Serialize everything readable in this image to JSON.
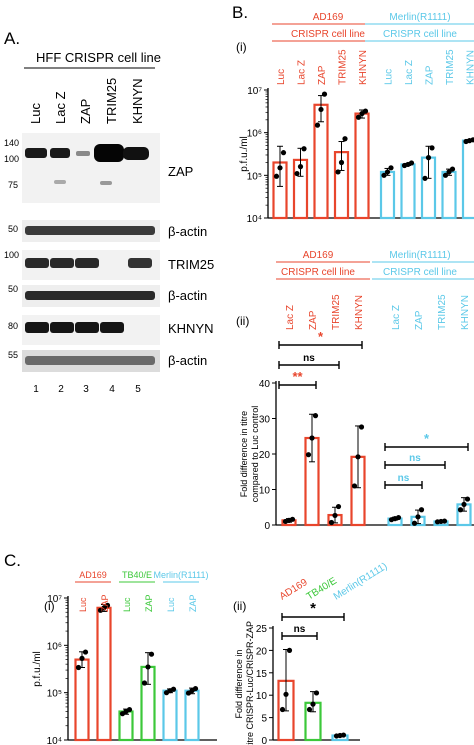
{
  "colors": {
    "ad169": "#e8452c",
    "tb40e": "#3cc83a",
    "merlin": "#5bc8e8",
    "black": "#000000"
  },
  "panel_a": {
    "letter": "A.",
    "header": "HFF CRISPR cell line",
    "lanes": [
      "Luc",
      "Lac Z",
      "ZAP",
      "TRIM25",
      "KHNYN"
    ],
    "lane_numbers": [
      "1",
      "2",
      "3",
      "4",
      "5"
    ],
    "blots": [
      {
        "label": "ZAP",
        "markers": [
          "140",
          "100",
          "75"
        ]
      },
      {
        "label": "β-actin",
        "markers": [
          "50"
        ]
      },
      {
        "label": "TRIM25",
        "markers": [
          "100"
        ]
      },
      {
        "label": "β-actin",
        "markers": [
          "50"
        ]
      },
      {
        "label": "KHNYN",
        "markers": [
          "80"
        ]
      },
      {
        "label": "β-actin",
        "markers": [
          "55"
        ]
      }
    ]
  },
  "panel_b": {
    "letter": "B.",
    "strain1": "AD169",
    "strain2": "Merlin(R1111)",
    "subheader": "CRISPR cell line"
  },
  "panel_c": {
    "letter": "C."
  },
  "chart_data": [
    {
      "id": "B(i)",
      "panel_label": "(i)",
      "type": "bar",
      "ylabel": "p.f.u./ml",
      "yscale": "log",
      "ylim": [
        10000,
        10000000
      ],
      "yticks": [
        "10⁴",
        "10⁵",
        "10⁶",
        "10⁷"
      ],
      "categories": [
        "Luc",
        "Lac Z",
        "ZAP",
        "TRIM25",
        "KHNYN",
        "Luc",
        "Lac Z",
        "ZAP",
        "TRIM25",
        "KHNYN"
      ],
      "values": [
        200000,
        230000,
        4500000,
        350000,
        2800000,
        120000,
        180000,
        260000,
        120000,
        650000
      ],
      "errors": [
        [
          55000,
          480000
        ],
        [
          95000,
          430000
        ],
        [
          1800000,
          7400000
        ],
        [
          130000,
          620000
        ],
        [
          2200000,
          3400000
        ],
        [
          100000,
          145000
        ],
        [
          170000,
          190000
        ],
        [
          85000,
          480000
        ],
        [
          100000,
          140000
        ],
        [
          620000,
          690000
        ]
      ],
      "points": [
        [
          95000,
          150000,
          340000
        ],
        [
          110000,
          160000,
          420000
        ],
        [
          1500000,
          3500000,
          8000000
        ],
        [
          120000,
          200000,
          720000
        ],
        [
          2300000,
          2800000,
          3200000
        ],
        [
          100000,
          120000,
          150000
        ],
        [
          170000,
          180000,
          195000
        ],
        [
          85000,
          260000,
          440000
        ],
        [
          100000,
          120000,
          140000
        ],
        [
          620000,
          650000,
          680000
        ]
      ],
      "strains": [
        "AD169",
        "AD169",
        "AD169",
        "AD169",
        "AD169",
        "Merlin(R1111)",
        "Merlin(R1111)",
        "Merlin(R1111)",
        "Merlin(R1111)",
        "Merlin(R1111)"
      ]
    },
    {
      "id": "B(ii)",
      "panel_label": "(ii)",
      "type": "bar",
      "ylabel": "Fold difference in titre compared to Luc control",
      "ylim": [
        0,
        40
      ],
      "yticks": [
        "0",
        "10",
        "20",
        "30",
        "40"
      ],
      "categories": [
        "Lac Z",
        "ZAP",
        "TRIM25",
        "KHNYN",
        "Lac Z",
        "ZAP",
        "TRIM25",
        "KHNYN"
      ],
      "values": [
        1.3,
        24.5,
        2.8,
        19.2,
        1.8,
        2.3,
        1.0,
        5.8
      ],
      "errors": [
        [
          0.8,
          1.8
        ],
        [
          17.8,
          31.2
        ],
        [
          0.6,
          5.0
        ],
        [
          10.5,
          27.9
        ],
        [
          1.4,
          2.2
        ],
        [
          0.4,
          4.2
        ],
        [
          0.8,
          1.2
        ],
        [
          3.9,
          7.7
        ]
      ],
      "points": [
        [
          1.0,
          1.3,
          1.6
        ],
        [
          19.8,
          24.5,
          30.8
        ],
        [
          0.7,
          2.7,
          5.2
        ],
        [
          11.0,
          19.2,
          27.6
        ],
        [
          1.5,
          1.8,
          2.1
        ],
        [
          0.5,
          2.3,
          4.3
        ],
        [
          0.9,
          1.0,
          1.1
        ],
        [
          4.3,
          5.8,
          7.3
        ]
      ],
      "strains": [
        "AD169",
        "AD169",
        "AD169",
        "AD169",
        "Merlin(R1111)",
        "Merlin(R1111)",
        "Merlin(R1111)",
        "Merlin(R1111)"
      ],
      "annotations": [
        "*",
        "ns",
        "**",
        "*",
        "ns",
        "ns"
      ]
    },
    {
      "id": "C(i)",
      "panel_label": "(i)",
      "type": "bar",
      "ylabel": "p.f.u./ml",
      "yscale": "log",
      "ylim": [
        10000,
        10000000
      ],
      "yticks": [
        "10⁴",
        "10⁵",
        "10⁶",
        "10⁷"
      ],
      "group_labels": [
        "AD169",
        "TB40/E",
        "Merlin(R1111)"
      ],
      "categories": [
        "Luc",
        "ZAP",
        "Luc",
        "ZAP",
        "Luc",
        "ZAP"
      ],
      "values": [
        500000,
        6200000,
        40000,
        350000,
        110000,
        110000
      ],
      "errors": [
        [
          340000,
          730000
        ],
        [
          5200000,
          7300000
        ],
        [
          35000,
          45000
        ],
        [
          150000,
          700000
        ],
        [
          100000,
          120000
        ],
        [
          95000,
          125000
        ]
      ],
      "points": [
        [
          340000,
          530000,
          720000
        ],
        [
          5500000,
          6200000,
          7000000
        ],
        [
          36000,
          40000,
          44000
        ],
        [
          160000,
          350000,
          650000
        ],
        [
          100000,
          110000,
          118000
        ],
        [
          98000,
          110000,
          122000
        ]
      ],
      "strains": [
        "AD169",
        "AD169",
        "TB40/E",
        "TB40/E",
        "Merlin(R1111)",
        "Merlin(R1111)"
      ]
    },
    {
      "id": "C(ii)",
      "panel_label": "(ii)",
      "type": "bar",
      "ylabel": "Fold difference in titre CRISPR-Luc/CRISPR-ZAP",
      "ylim": [
        0,
        25
      ],
      "yticks": [
        "0",
        "5",
        "10",
        "15",
        "20",
        "25"
      ],
      "categories": [
        "AD169",
        "TB40/E",
        "Merlin(R1111)"
      ],
      "values": [
        13.2,
        8.3,
        1.0
      ],
      "errors": [
        [
          6.5,
          20.2
        ],
        [
          6.3,
          10.8
        ],
        [
          0.9,
          1.1
        ]
      ],
      "points": [
        [
          6.8,
          10.2,
          20.0
        ],
        [
          6.8,
          8.0,
          10.5
        ],
        [
          0.9,
          1.0,
          1.1
        ]
      ],
      "strains": [
        "AD169",
        "TB40/E",
        "Merlin(R1111)"
      ],
      "annotations": [
        "ns",
        "*"
      ]
    }
  ]
}
